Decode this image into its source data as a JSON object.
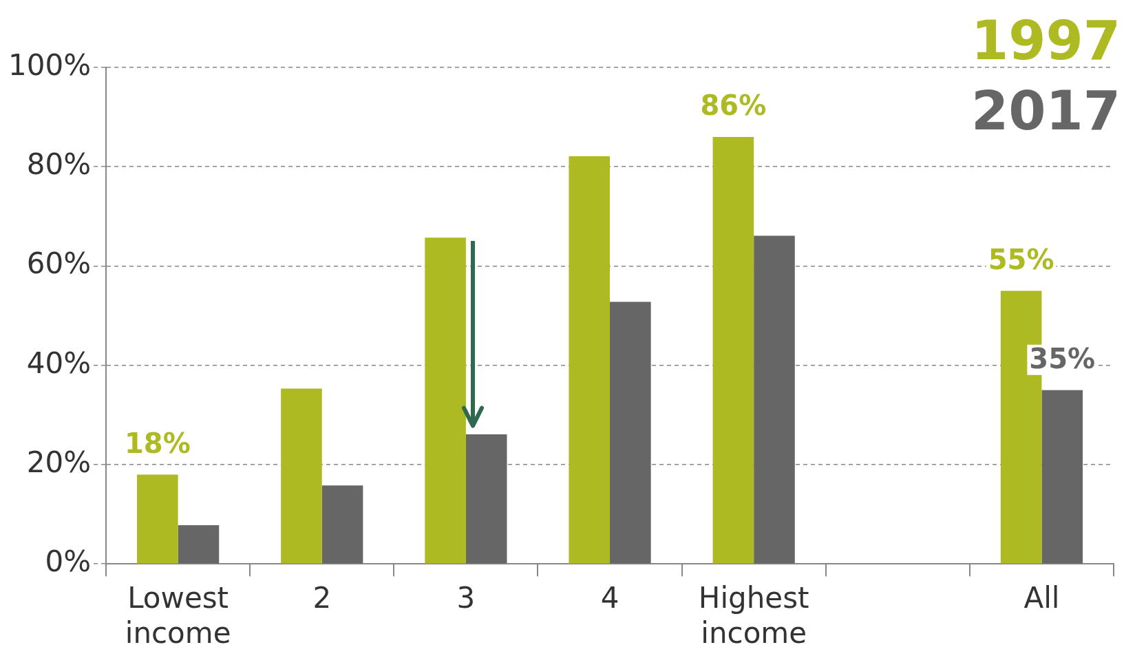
{
  "chart_data": {
    "type": "bar",
    "categories": [
      "Lowest income",
      "2",
      "3",
      "4",
      "Highest income",
      null,
      "All"
    ],
    "series": [
      {
        "name": "1997",
        "color": "#adba22",
        "values": [
          18,
          35.3,
          65.7,
          82.1,
          86,
          null,
          55
        ],
        "value_labels": [
          "18%",
          null,
          null,
          null,
          "86%",
          null,
          "55%"
        ]
      },
      {
        "name": "2017",
        "color": "#666666",
        "values": [
          7.8,
          15.8,
          26.1,
          52.8,
          66.1,
          null,
          35
        ],
        "value_labels": [
          null,
          null,
          null,
          null,
          null,
          null,
          "35%"
        ]
      }
    ],
    "ylim": [
      0,
      100
    ],
    "yticks": [
      {
        "value": 0,
        "label": "0%"
      },
      {
        "value": 20,
        "label": "20%"
      },
      {
        "value": 40,
        "label": "40%"
      },
      {
        "value": 60,
        "label": "60%"
      },
      {
        "value": 80,
        "label": "80%"
      },
      {
        "value": 100,
        "label": "100%"
      }
    ],
    "grid": "y",
    "legend": "top right"
  }
}
